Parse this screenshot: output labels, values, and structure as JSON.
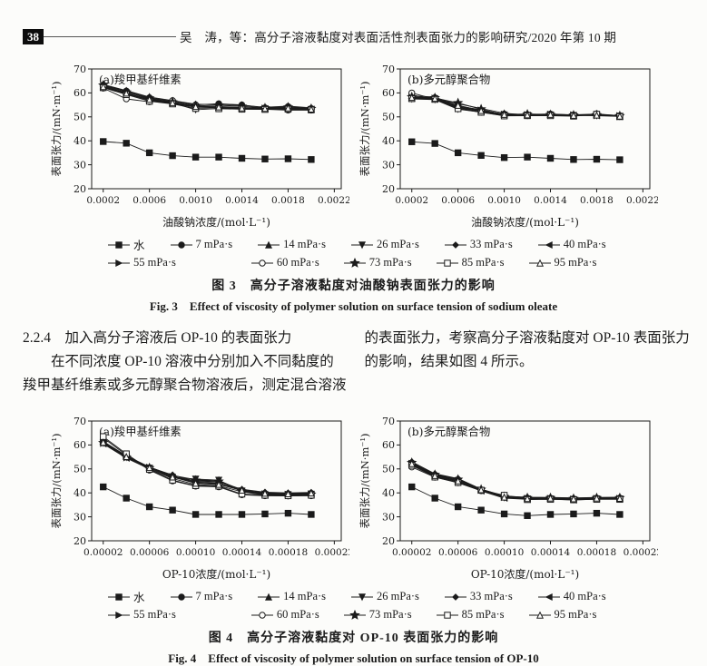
{
  "page": {
    "page_number": "38",
    "running_head": "吴　涛，等：高分子溶液黏度对表面活性剂表面张力的影响研究/2020 年第 10 期"
  },
  "body_text": {
    "left_column": [
      "2.2.4　加入高分子溶液后 OP-10 的表面张力",
      "在不同浓度 OP-10 溶液中分别加入不同黏度的",
      "羧甲基纤维素或多元醇聚合物溶液后，测定混合溶液"
    ],
    "right_column": [
      "的表面张力，考察高分子溶液黏度对 OP-10 表面张力",
      "的影响，结果如图 4 所示。"
    ]
  },
  "legend_rows": [
    [
      {
        "label": "水",
        "marker": "square-filled"
      },
      {
        "label": "7 mPa·s",
        "marker": "circle-filled"
      },
      {
        "label": "14 mPa·s",
        "marker": "triangle-up-filled"
      },
      {
        "label": "26 mPa·s",
        "marker": "triangle-down-filled"
      },
      {
        "label": "33 mPa·s",
        "marker": "diamond-filled"
      },
      {
        "label": "40 mPa·s",
        "marker": "triangle-left-filled"
      }
    ],
    [
      {
        "label": "55 mPa·s",
        "marker": "triangle-right-filled"
      },
      {
        "label": "60 mPa·s",
        "marker": "circle-open"
      },
      {
        "label": "73 mPa·s",
        "marker": "star-filled"
      },
      {
        "label": "85 mPa·s",
        "marker": "square-open"
      },
      {
        "label": "95 mPa·s",
        "marker": "triangle-up-open"
      }
    ]
  ],
  "figures": [
    {
      "caption_zh": "图 3　高分子溶液黏度对油酸钠表面张力的影响",
      "caption_en": "Fig. 3　Effect of viscosity of polymer solution on surface tension of sodium oleate"
    },
    {
      "caption_zh": "图 4　高分子溶液黏度对 OP-10 表面张力的影响",
      "caption_en": "Fig. 4　Effect of viscosity of polymer solution on surface tension of OP-10"
    }
  ],
  "colors": {
    "ink": "#1b1b1b",
    "paper": "#fcfcfa"
  },
  "chart_data": [
    {
      "id": "fig3a",
      "type": "line",
      "panel_label": "(a)羧甲基纤维素",
      "xlabel": "油酸钠浓度/(mol·L⁻¹)",
      "ylabel": "表面张力/(mN·m⁻¹)",
      "xlim": [
        0.0001,
        0.00226
      ],
      "ylim": [
        20,
        70
      ],
      "xticks": [
        0.0002,
        0.0006,
        0.001,
        0.0014,
        0.0018,
        0.0022
      ],
      "xtick_labels": [
        "0.0002",
        "0.0006",
        "0.0010",
        "0.0014",
        "0.0018",
        "0.0022"
      ],
      "yticks": [
        20,
        30,
        40,
        50,
        60,
        70
      ],
      "x": [
        0.0002,
        0.0004,
        0.0006,
        0.0008,
        0.001,
        0.0012,
        0.0014,
        0.0016,
        0.0018,
        0.002
      ],
      "series": [
        {
          "name": "水",
          "marker": "square-filled",
          "values": [
            39.7,
            39.0,
            35.0,
            33.8,
            33.2,
            33.2,
            32.7,
            32.4,
            32.5,
            32.2
          ]
        },
        {
          "name": "7 mPa·s",
          "marker": "circle-filled",
          "values": [
            63.3,
            60.8,
            58.0,
            56.5,
            55.0,
            55.5,
            55.0,
            53.8,
            54.3,
            53.5
          ]
        },
        {
          "name": "14 mPa·s",
          "marker": "triangle-up-filled",
          "values": [
            63.0,
            60.5,
            57.5,
            56.0,
            54.5,
            54.0,
            53.8,
            53.5,
            53.8,
            53.3
          ]
        },
        {
          "name": "26 mPa·s",
          "marker": "triangle-down-filled",
          "values": [
            62.5,
            59.5,
            57.0,
            55.8,
            53.0,
            53.5,
            53.3,
            53.3,
            53.5,
            53.0
          ]
        },
        {
          "name": "33 mPa·s",
          "marker": "diamond-filled",
          "values": [
            63.5,
            61.0,
            58.3,
            56.8,
            55.3,
            55.0,
            54.8,
            54.0,
            54.5,
            53.8
          ]
        },
        {
          "name": "40 mPa·s",
          "marker": "triangle-left-filled",
          "values": [
            62.8,
            60.0,
            57.2,
            55.5,
            54.0,
            53.8,
            53.5,
            53.4,
            53.6,
            53.2
          ]
        },
        {
          "name": "55 mPa·s",
          "marker": "triangle-right-filled",
          "values": [
            62.3,
            59.8,
            56.8,
            55.6,
            54.2,
            54.3,
            53.9,
            53.6,
            53.4,
            53.1
          ]
        },
        {
          "name": "60 mPa·s",
          "marker": "circle-open",
          "values": [
            62.0,
            57.5,
            56.3,
            56.8,
            54.8,
            53.6,
            53.4,
            53.2,
            52.8,
            52.8
          ]
        },
        {
          "name": "73 mPa·s",
          "marker": "star-filled",
          "values": [
            63.2,
            60.3,
            57.8,
            56.2,
            54.6,
            54.8,
            54.4,
            53.7,
            54.0,
            53.4
          ]
        },
        {
          "name": "85 mPa·s",
          "marker": "square-open",
          "values": [
            62.2,
            59.3,
            56.5,
            55.4,
            53.5,
            53.4,
            53.2,
            53.1,
            53.2,
            52.9
          ]
        },
        {
          "name": "95 mPa·s",
          "marker": "triangle-up-open",
          "values": [
            62.6,
            59.9,
            57.3,
            55.9,
            54.3,
            54.1,
            53.7,
            53.5,
            53.7,
            53.2
          ]
        }
      ]
    },
    {
      "id": "fig3b",
      "type": "line",
      "panel_label": "(b)多元醇聚合物",
      "xlabel": "油酸钠浓度/(mol·L⁻¹)",
      "ylabel": "表面张力/(mN·m⁻¹)",
      "xlim": [
        0.0001,
        0.00226
      ],
      "ylim": [
        20,
        70
      ],
      "xticks": [
        0.0002,
        0.0006,
        0.001,
        0.0014,
        0.0018,
        0.0022
      ],
      "xtick_labels": [
        "0.0002",
        "0.0006",
        "0.0010",
        "0.0014",
        "0.0018",
        "0.0022"
      ],
      "yticks": [
        20,
        30,
        40,
        50,
        60,
        70
      ],
      "x": [
        0.0002,
        0.0004,
        0.0006,
        0.0008,
        0.001,
        0.0012,
        0.0014,
        0.0016,
        0.0018,
        0.002
      ],
      "series": [
        {
          "name": "水",
          "marker": "square-filled",
          "values": [
            39.6,
            38.9,
            35.0,
            33.9,
            33.0,
            33.2,
            32.7,
            32.2,
            32.3,
            32.1
          ]
        },
        {
          "name": "7 mPa·s",
          "marker": "circle-filled",
          "values": [
            58.5,
            58.0,
            54.0,
            52.5,
            51.2,
            51.0,
            51.2,
            50.8,
            51.2,
            50.5
          ]
        },
        {
          "name": "14 mPa·s",
          "marker": "triangle-up-filled",
          "values": [
            58.0,
            57.5,
            55.5,
            53.5,
            51.5,
            50.8,
            50.9,
            50.7,
            50.8,
            50.4
          ]
        },
        {
          "name": "26 mPa·s",
          "marker": "triangle-down-filled",
          "values": [
            57.5,
            57.2,
            53.2,
            52.0,
            50.5,
            50.6,
            50.7,
            50.6,
            50.5,
            50.2
          ]
        },
        {
          "name": "33 mPa·s",
          "marker": "diamond-filled",
          "values": [
            58.8,
            58.3,
            54.5,
            53.0,
            51.0,
            51.2,
            51.0,
            50.9,
            51.0,
            50.6
          ]
        },
        {
          "name": "40 mPa·s",
          "marker": "triangle-left-filled",
          "values": [
            57.8,
            57.6,
            53.8,
            52.2,
            50.8,
            50.7,
            50.8,
            50.5,
            50.7,
            50.3
          ]
        },
        {
          "name": "55 mPa·s",
          "marker": "triangle-right-filled",
          "values": [
            58.2,
            57.8,
            54.2,
            52.8,
            51.1,
            50.9,
            51.1,
            50.8,
            50.9,
            50.5
          ]
        },
        {
          "name": "60 mPa·s",
          "marker": "circle-open",
          "values": [
            60.0,
            57.4,
            53.5,
            52.1,
            50.6,
            50.5,
            50.6,
            50.4,
            51.3,
            50.2
          ]
        },
        {
          "name": "73 mPa·s",
          "marker": "star-filled",
          "values": [
            58.3,
            57.9,
            55.8,
            53.2,
            50.9,
            51.1,
            50.9,
            50.7,
            50.8,
            50.4
          ]
        },
        {
          "name": "85 mPa·s",
          "marker": "square-open",
          "values": [
            57.6,
            57.3,
            53.4,
            51.9,
            50.4,
            50.5,
            50.5,
            50.3,
            51.1,
            50.1
          ]
        },
        {
          "name": "95 mPa·s",
          "marker": "triangle-up-open",
          "values": [
            58.1,
            57.7,
            54.8,
            52.6,
            51.0,
            50.8,
            51.0,
            50.6,
            50.7,
            50.3
          ]
        }
      ]
    },
    {
      "id": "fig4a",
      "type": "line",
      "panel_label": "(a)羧甲基纤维素",
      "xlabel": "OP-10浓度/(mol·L⁻¹)",
      "ylabel": "表面张力/(mN·m⁻¹)",
      "xlim": [
        1e-05,
        0.000226
      ],
      "ylim": [
        20,
        70
      ],
      "xticks": [
        2e-05,
        6e-05,
        0.0001,
        0.00014,
        0.00018,
        0.00022
      ],
      "xtick_labels": [
        "0.00002",
        "0.00006",
        "0.00010",
        "0.00014",
        "0.00018",
        "0.00022"
      ],
      "yticks": [
        20,
        30,
        40,
        50,
        60,
        70
      ],
      "x": [
        2e-05,
        4e-05,
        6e-05,
        8e-05,
        0.0001,
        0.00012,
        0.00014,
        0.00016,
        0.00018,
        0.0002
      ],
      "series": [
        {
          "name": "水",
          "marker": "square-filled",
          "values": [
            42.5,
            37.8,
            34.2,
            32.8,
            31.0,
            31.0,
            31.0,
            31.2,
            31.5,
            31.0
          ]
        },
        {
          "name": "7 mPa·s",
          "marker": "circle-filled",
          "values": [
            61.0,
            55.0,
            50.5,
            47.0,
            44.5,
            44.0,
            41.0,
            39.5,
            39.5,
            39.8
          ]
        },
        {
          "name": "14 mPa·s",
          "marker": "triangle-up-filled",
          "values": [
            61.5,
            55.5,
            50.8,
            47.3,
            45.5,
            45.0,
            41.3,
            40.0,
            39.8,
            40.0
          ]
        },
        {
          "name": "26 mPa·s",
          "marker": "triangle-down-filled",
          "values": [
            60.8,
            54.8,
            50.3,
            46.5,
            45.8,
            45.3,
            40.8,
            39.3,
            39.3,
            39.5
          ]
        },
        {
          "name": "33 mPa·s",
          "marker": "diamond-filled",
          "values": [
            61.2,
            55.2,
            50.6,
            47.5,
            44.8,
            44.5,
            41.5,
            40.3,
            40.0,
            40.2
          ]
        },
        {
          "name": "40 mPa·s",
          "marker": "triangle-left-filled",
          "values": [
            60.5,
            54.5,
            50.0,
            46.0,
            43.5,
            43.0,
            40.5,
            39.0,
            39.0,
            39.2
          ]
        },
        {
          "name": "55 mPa·s",
          "marker": "triangle-right-filled",
          "values": [
            61.3,
            55.3,
            50.7,
            46.8,
            44.2,
            43.8,
            40.9,
            39.6,
            39.4,
            39.6
          ]
        },
        {
          "name": "60 mPa·s",
          "marker": "circle-open",
          "values": [
            63.0,
            55.8,
            49.5,
            45.0,
            42.8,
            42.5,
            39.2,
            38.8,
            38.7,
            38.8
          ]
        },
        {
          "name": "73 mPa·s",
          "marker": "star-filled",
          "values": [
            60.9,
            54.9,
            50.4,
            46.3,
            45.2,
            44.8,
            40.7,
            39.4,
            39.2,
            39.4
          ]
        },
        {
          "name": "85 mPa·s",
          "marker": "square-open",
          "values": [
            63.5,
            56.3,
            49.8,
            45.3,
            43.0,
            42.8,
            39.5,
            39.0,
            38.8,
            39.0
          ]
        },
        {
          "name": "95 mPa·s",
          "marker": "triangle-up-open",
          "values": [
            61.1,
            55.1,
            50.5,
            46.6,
            44.0,
            43.5,
            41.1,
            39.8,
            39.6,
            39.9
          ]
        }
      ]
    },
    {
      "id": "fig4b",
      "type": "line",
      "panel_label": "(b)多元醇聚合物",
      "xlabel": "OP-10浓度/(mol·L⁻¹)",
      "ylabel": "表面张力/(mN·m⁻¹)",
      "xlim": [
        1e-05,
        0.000226
      ],
      "ylim": [
        20,
        70
      ],
      "xticks": [
        2e-05,
        6e-05,
        0.0001,
        0.00014,
        0.00018,
        0.00022
      ],
      "xtick_labels": [
        "0.00002",
        "0.00006",
        "0.00010",
        "0.00014",
        "0.00018",
        "0.00022"
      ],
      "yticks": [
        20,
        30,
        40,
        50,
        60,
        70
      ],
      "x": [
        2e-05,
        4e-05,
        6e-05,
        8e-05,
        0.0001,
        0.00012,
        0.00014,
        0.00016,
        0.00018,
        0.0002
      ],
      "series": [
        {
          "name": "水",
          "marker": "square-filled",
          "values": [
            42.5,
            37.8,
            34.2,
            32.8,
            31.2,
            30.5,
            31.0,
            31.2,
            31.5,
            31.0
          ]
        },
        {
          "name": "7 mPa·s",
          "marker": "circle-filled",
          "values": [
            52.5,
            47.5,
            45.5,
            41.3,
            38.5,
            37.8,
            37.8,
            37.5,
            37.8,
            37.8
          ]
        },
        {
          "name": "14 mPa·s",
          "marker": "triangle-up-filled",
          "values": [
            52.8,
            47.8,
            45.8,
            41.5,
            38.8,
            38.0,
            38.0,
            37.8,
            38.0,
            38.0
          ]
        },
        {
          "name": "26 mPa·s",
          "marker": "triangle-down-filled",
          "values": [
            52.0,
            47.0,
            44.8,
            41.0,
            38.0,
            37.5,
            37.5,
            37.2,
            37.5,
            37.5
          ]
        },
        {
          "name": "33 mPa·s",
          "marker": "diamond-filled",
          "values": [
            53.0,
            48.0,
            46.0,
            41.6,
            38.6,
            38.2,
            38.1,
            37.9,
            38.1,
            38.2
          ]
        },
        {
          "name": "40 mPa·s",
          "marker": "triangle-left-filled",
          "values": [
            51.8,
            46.8,
            44.5,
            40.8,
            37.8,
            37.3,
            37.4,
            37.0,
            37.4,
            37.4
          ]
        },
        {
          "name": "55 mPa·s",
          "marker": "triangle-right-filled",
          "values": [
            52.3,
            47.3,
            45.2,
            41.2,
            38.3,
            37.7,
            37.7,
            37.4,
            37.7,
            37.7
          ]
        },
        {
          "name": "60 mPa·s",
          "marker": "circle-open",
          "values": [
            50.8,
            46.5,
            44.2,
            40.9,
            38.9,
            37.4,
            37.6,
            37.3,
            37.6,
            37.6
          ]
        },
        {
          "name": "73 mPa·s",
          "marker": "star-filled",
          "values": [
            52.6,
            47.6,
            45.6,
            41.4,
            38.4,
            37.9,
            37.9,
            37.6,
            37.9,
            37.9
          ]
        },
        {
          "name": "85 mPa·s",
          "marker": "square-open",
          "values": [
            51.5,
            46.6,
            44.3,
            41.1,
            39.0,
            37.2,
            37.3,
            37.1,
            37.3,
            37.3
          ]
        },
        {
          "name": "95 mPa·s",
          "marker": "triangle-up-open",
          "values": [
            52.2,
            47.2,
            45.0,
            41.3,
            38.2,
            37.6,
            37.8,
            37.5,
            37.8,
            37.7
          ]
        }
      ]
    }
  ]
}
